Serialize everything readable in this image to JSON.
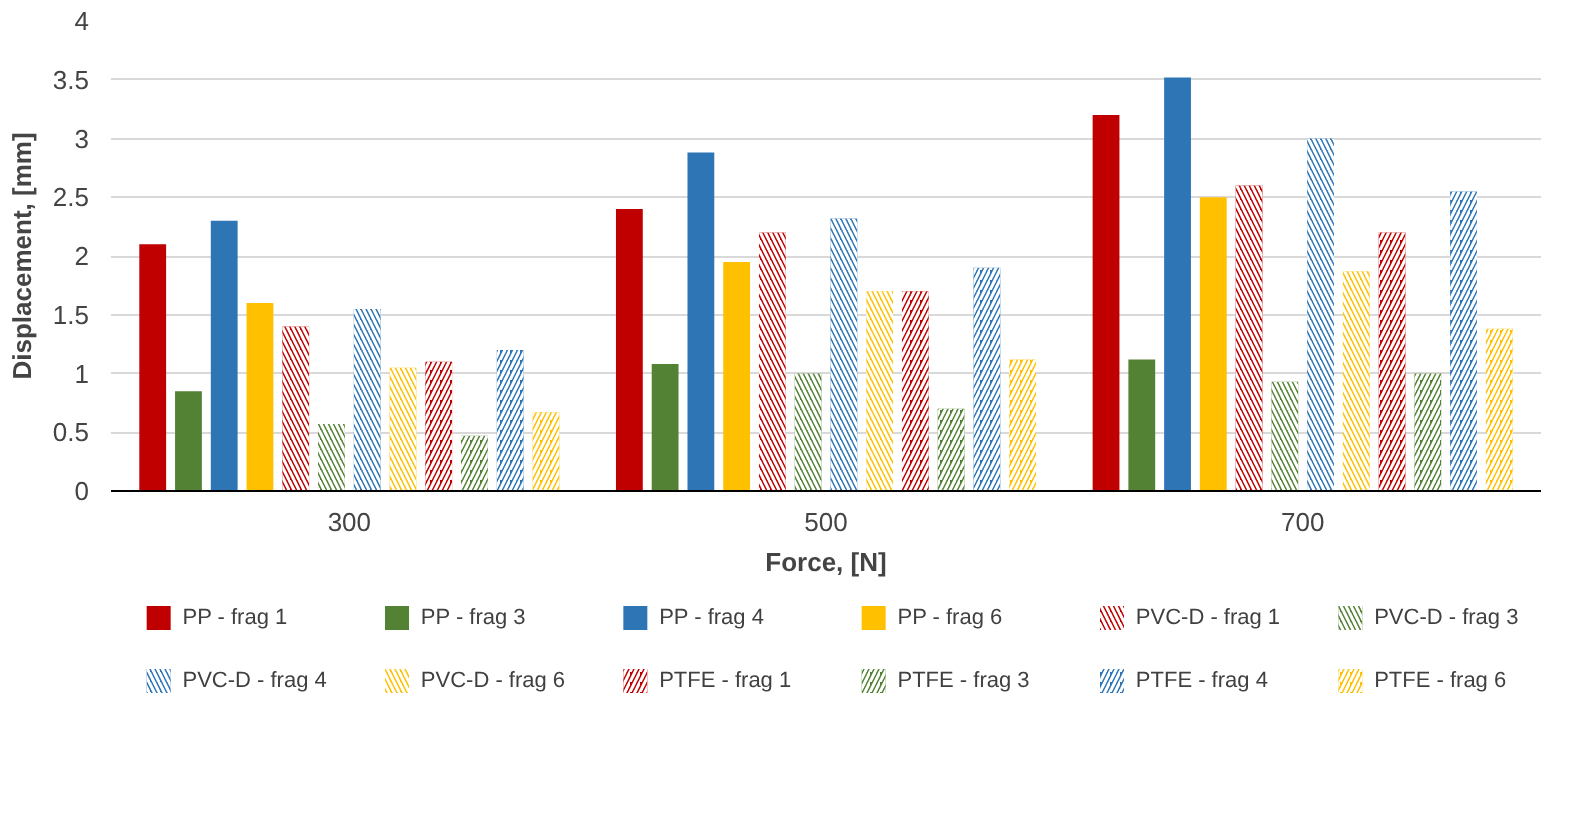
{
  "chart_data": {
    "type": "bar",
    "xlabel": "Force, [N]",
    "ylabel": "Displacement, [mm]",
    "categories": [
      "300",
      "500",
      "700"
    ],
    "ylim": [
      0,
      4
    ],
    "yticks": [
      0,
      0.5,
      1,
      1.5,
      2,
      2.5,
      3,
      3.5,
      4
    ],
    "grid": "y",
    "legend": "bottom",
    "series": [
      {
        "name": "PP - frag 1",
        "color": "#c00000",
        "values": [
          2.1,
          2.4,
          3.2
        ]
      },
      {
        "name": "PP - frag 3",
        "color": "#548235",
        "values": [
          0.85,
          1.08,
          1.12
        ]
      },
      {
        "name": "PP - frag 4",
        "color": "#2e75b6",
        "values": [
          2.3,
          2.88,
          3.52
        ]
      },
      {
        "name": "PP - frag 6",
        "color": "#ffc000",
        "values": [
          1.6,
          1.95,
          2.5
        ]
      },
      {
        "name": "PVC-D - frag 1",
        "color": "#c00000",
        "values": [
          1.4,
          2.2,
          2.6
        ]
      },
      {
        "name": "PVC-D - frag 3",
        "color": "#548235",
        "values": [
          0.57,
          1.0,
          0.93
        ]
      },
      {
        "name": "PVC-D - frag  4",
        "color": "#2e75b6",
        "values": [
          1.55,
          2.32,
          3.0
        ]
      },
      {
        "name": "PVC-D - frag 6",
        "color": "#ffc000",
        "values": [
          1.05,
          1.7,
          1.87
        ]
      },
      {
        "name": "PTFE - frag 1",
        "color": "#c00000",
        "values": [
          1.1,
          1.7,
          2.2
        ]
      },
      {
        "name": "PTFE - frag 3",
        "color": "#548235",
        "values": [
          0.47,
          0.7,
          1.0
        ]
      },
      {
        "name": "PTFE - frag 4",
        "color": "#2e75b6",
        "values": [
          1.2,
          1.9,
          2.55
        ]
      },
      {
        "name": "PTFE - frag 6",
        "color": "#ffc000",
        "values": [
          0.67,
          1.12,
          1.38
        ]
      }
    ]
  }
}
